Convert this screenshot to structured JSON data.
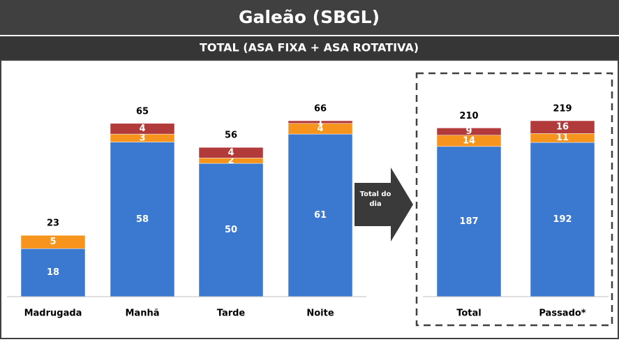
{
  "title": "Galeão (SBGL)",
  "subtitle": "TOTAL (ASA FIXA + ASA ROTATIVA)",
  "arrow_label": "Total do dia",
  "chart_data": [
    {
      "type": "bar",
      "stacked": true,
      "categories": [
        "Madrugada",
        "Manhã",
        "Tarde",
        "Noite"
      ],
      "series": [
        {
          "color": "#3b78cf",
          "values": [
            18,
            58,
            50,
            61
          ]
        },
        {
          "color": "#f7941d",
          "values": [
            5,
            3,
            2,
            4
          ]
        },
        {
          "color": "#b23a3a",
          "values": [
            null,
            4,
            4,
            1
          ]
        }
      ],
      "totals": [
        23,
        65,
        56,
        66
      ]
    },
    {
      "type": "bar",
      "stacked": true,
      "categories": [
        "Total",
        "Passado*"
      ],
      "series": [
        {
          "color": "#3b78cf",
          "values": [
            187,
            192
          ]
        },
        {
          "color": "#f7941d",
          "values": [
            14,
            11
          ]
        },
        {
          "color": "#b23a3a",
          "values": [
            9,
            16
          ]
        }
      ],
      "totals": [
        210,
        219
      ]
    }
  ]
}
